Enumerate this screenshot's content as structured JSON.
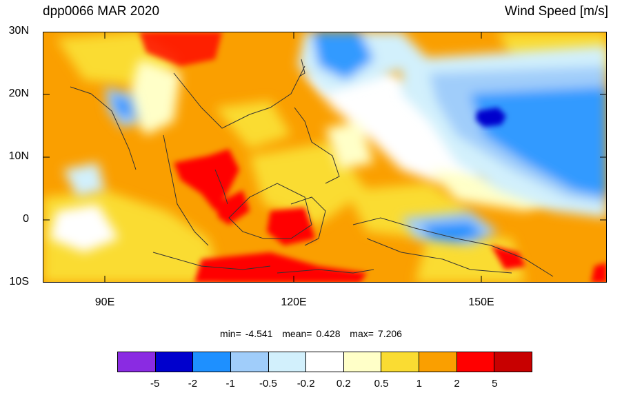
{
  "title_left": "dpp0066 MAR 2020",
  "title_right": "Wind Speed [m/s]",
  "lat_labels": [
    "30N",
    "20N",
    "10N",
    "0",
    "10S"
  ],
  "lon_labels": [
    "90E",
    "120E",
    "150E"
  ],
  "stats": {
    "min_label": "min=",
    "min": "-4.541",
    "mean_label": "mean=",
    "mean": "0.428",
    "max_label": "max=",
    "max": "7.206"
  },
  "colorbar": {
    "colors": [
      "#8a2be2",
      "#0000cd",
      "#1e90ff",
      "#a0cdfa",
      "#d2f0fc",
      "#ffffff",
      "#ffffc8",
      "#fadc32",
      "#fa9f00",
      "#ff0000",
      "#c80000"
    ],
    "labels": [
      "-5",
      "-2",
      "-1",
      "-0.5",
      "-0.2",
      "0.2",
      "0.5",
      "1",
      "2",
      "5"
    ]
  }
}
